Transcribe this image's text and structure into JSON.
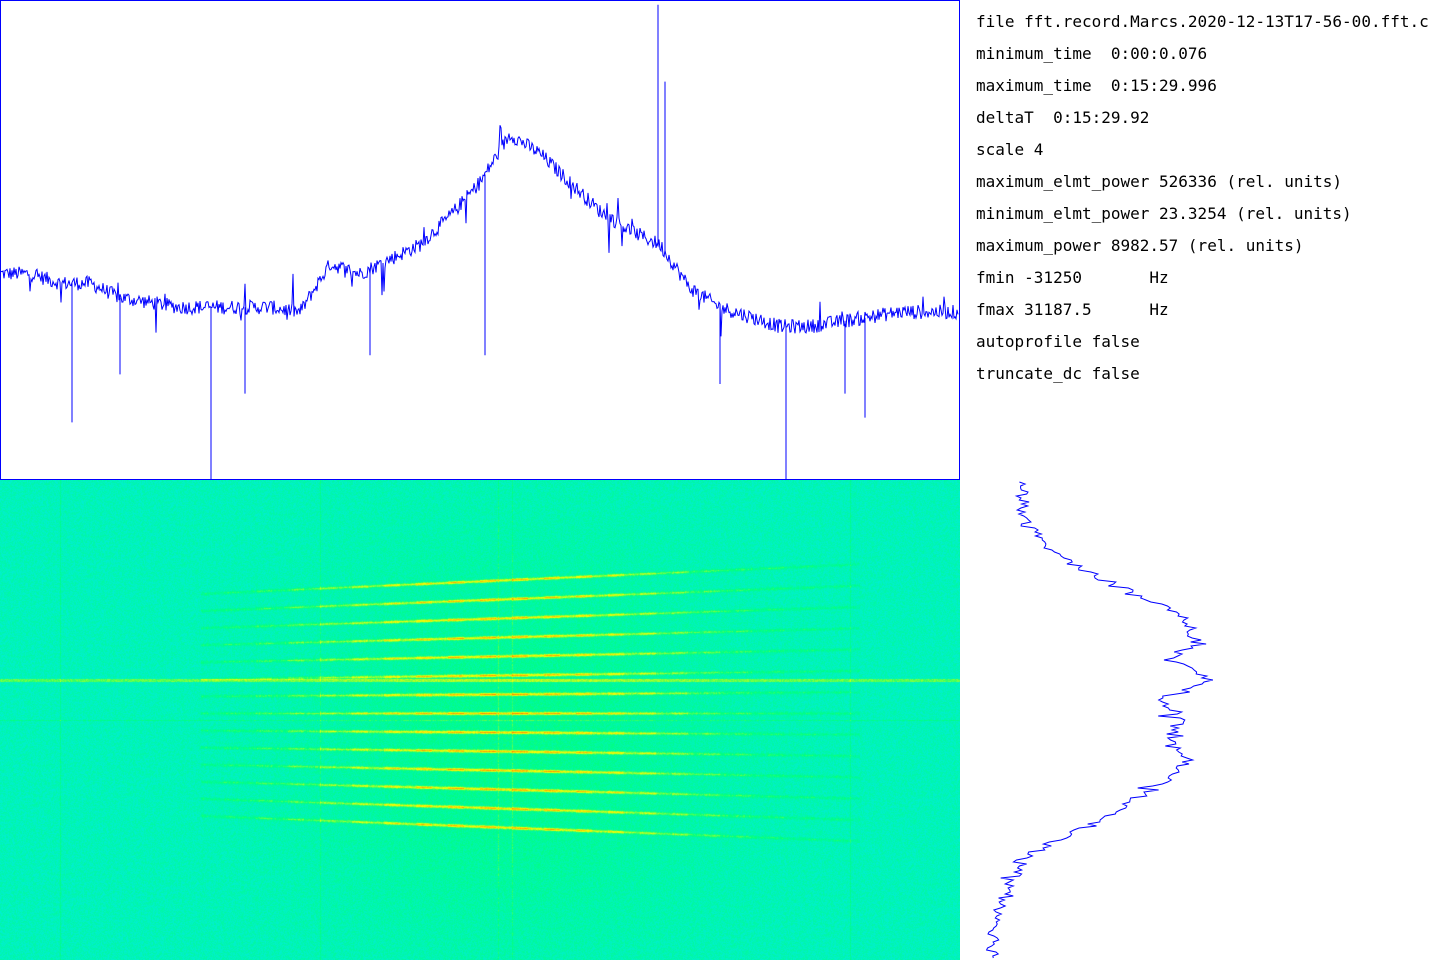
{
  "info": {
    "lines": [
      "file fft.record.Marcs.2020-12-13T17-56-00.fft.c",
      "minimum_time  0:00:0.076",
      "maximum_time  0:15:29.996",
      "deltaT  0:15:29.92",
      "scale 4",
      "maximum_elmt_power 526336 (rel. units)",
      "minimum_elmt_power 23.3254 (rel. units)",
      "maximum_power 8982.57 (rel. units)",
      "fmin -31250       Hz",
      "fmax 31187.5      Hz",
      "autoprofile false",
      "truncate_dc false"
    ]
  },
  "chart_data": [
    {
      "type": "line",
      "series": [
        {
          "color": "#0000ff",
          "x": [
            0,
            30,
            60,
            90,
            120,
            150,
            180,
            210,
            240,
            270,
            300,
            330,
            360,
            390,
            420,
            450,
            480,
            510,
            540,
            570,
            600,
            630,
            660,
            690,
            720,
            750,
            780,
            810,
            840,
            870,
            900,
            930
          ],
          "y": [
            0.43,
            0.43,
            0.41,
            0.41,
            0.38,
            0.37,
            0.36,
            0.36,
            0.36,
            0.36,
            0.35,
            0.45,
            0.43,
            0.46,
            0.49,
            0.55,
            0.62,
            0.72,
            0.68,
            0.62,
            0.56,
            0.52,
            0.49,
            0.4,
            0.36,
            0.34,
            0.32,
            0.32,
            0.33,
            0.34,
            0.35,
            0.35
          ]
        }
      ],
      "spikes": [
        {
          "x": 72,
          "y": 0.12
        },
        {
          "x": 120,
          "y": 0.22
        },
        {
          "x": 211,
          "y": -0.02
        },
        {
          "x": 245,
          "y": 0.18
        },
        {
          "x": 370,
          "y": 0.26
        },
        {
          "x": 485,
          "y": 0.26
        },
        {
          "x": 658,
          "y": 0.99
        },
        {
          "x": 665,
          "y": 0.83
        },
        {
          "x": 720,
          "y": 0.2
        },
        {
          "x": 786,
          "y": -0.06
        },
        {
          "x": 845,
          "y": 0.18
        },
        {
          "x": 865,
          "y": 0.13
        }
      ],
      "ylim": [
        0,
        1
      ]
    },
    {
      "type": "heatmap",
      "colormap": [
        "#00e8f8",
        "#00ff80",
        "#ffff00",
        "#ff8000"
      ],
      "tracks": 14
    },
    {
      "type": "line",
      "orientation": "vertical",
      "series": [
        {
          "color": "#0000ff",
          "x": [
            0,
            20,
            40,
            60,
            80,
            100,
            120,
            140,
            160,
            180,
            200,
            220,
            240,
            260,
            280,
            300,
            320,
            340,
            360,
            380,
            400,
            420,
            440,
            460,
            480
          ],
          "y": [
            0.12,
            0.13,
            0.13,
            0.17,
            0.22,
            0.3,
            0.4,
            0.47,
            0.49,
            0.44,
            0.52,
            0.42,
            0.46,
            0.43,
            0.47,
            0.44,
            0.36,
            0.3,
            0.2,
            0.13,
            0.11,
            0.09,
            0.08,
            0.07,
            0.07
          ]
        }
      ]
    }
  ]
}
